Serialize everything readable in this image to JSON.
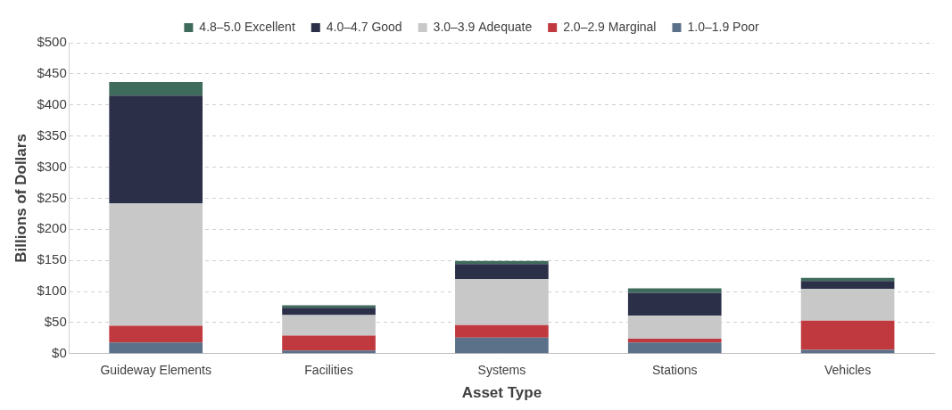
{
  "chart_data": {
    "type": "bar",
    "stacked": true,
    "grid": true,
    "legend": "top",
    "x_label": "Asset Type",
    "y_label": "Billions of Dollars",
    "categories": [
      "Guideway Elements",
      "Facilities",
      "Systems",
      "Stations",
      "Vehicles"
    ],
    "series": [
      {
        "name": "1.0–1.9 Poor",
        "color": "#5b7089",
        "values": [
          18,
          5,
          26,
          18,
          6
        ]
      },
      {
        "name": "2.0–2.9 Marginal",
        "color": "#c0393f",
        "values": [
          27,
          24,
          20,
          6,
          47
        ]
      },
      {
        "name": "3.0–3.9 Adequate",
        "color": "#c8c8c8",
        "values": [
          197,
          33,
          74,
          37,
          51
        ]
      },
      {
        "name": "4.0–4.7 Good",
        "color": "#2b3048",
        "values": [
          173,
          12,
          24,
          37,
          13
        ]
      },
      {
        "name": "4.8–5.0 Excellent",
        "color": "#3f6b5c",
        "values": [
          22,
          4,
          5,
          7,
          5
        ]
      }
    ],
    "ylim": [
      0,
      500
    ],
    "yticks": [
      {
        "value": 0,
        "label": "$0"
      },
      {
        "value": 50,
        "label": "$50"
      },
      {
        "value": 100,
        "label": "$100"
      },
      {
        "value": 150,
        "label": "$150"
      },
      {
        "value": 200,
        "label": "$200"
      },
      {
        "value": 250,
        "label": "$250"
      },
      {
        "value": 300,
        "label": "$300"
      },
      {
        "value": 350,
        "label": "$350"
      },
      {
        "value": 400,
        "label": "$400"
      },
      {
        "value": 450,
        "label": "$450"
      },
      {
        "value": 500,
        "label": "$500"
      }
    ]
  }
}
